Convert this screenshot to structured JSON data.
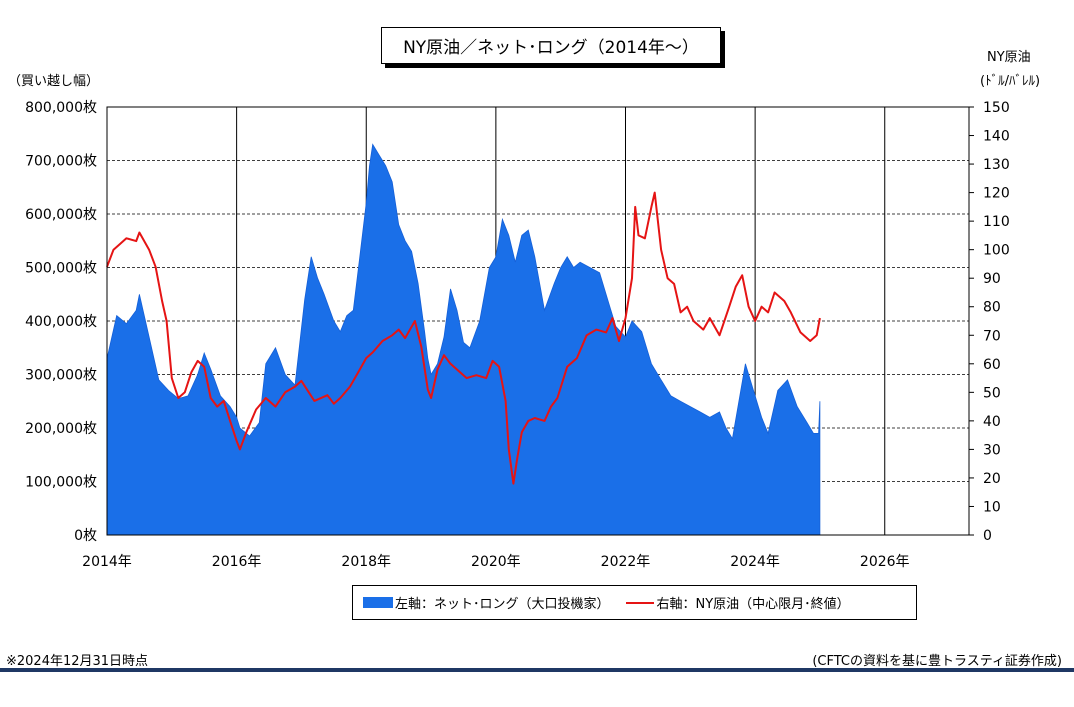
{
  "title": "NY原油／ネット･ロング（2014年～）",
  "left_axis_caption": "（買い越し幅）",
  "right_axis_caption_line1": "NY原油",
  "right_axis_caption_line2": "(ﾄﾞﾙ/ﾊﾞﾚﾙ)",
  "legend": {
    "series1": "左軸：ネット･ロング（大口投機家）",
    "series2": "右軸：NY原油（中心限月･終値）"
  },
  "footnote_left": "※2024年12月31日時点",
  "footnote_right": "(CFTCの資料を基に豊トラスティ証券作成)",
  "colors": {
    "net_long": "#1a6fe8",
    "crude": "#e51414",
    "rule": "#1f3864"
  },
  "chart_data": {
    "type": "area",
    "x_ticks": [
      "2014年",
      "2016年",
      "2018年",
      "2020年",
      "2022年",
      "2024年",
      "2026年"
    ],
    "xlim": [
      2014,
      2027.3
    ],
    "y_left": {
      "ticks": [
        "0枚",
        "100,000枚",
        "200,000枚",
        "300,000枚",
        "400,000枚",
        "500,000枚",
        "600,000枚",
        "700,000枚",
        "800,000枚"
      ],
      "min": 0,
      "max": 800000
    },
    "y_right": {
      "ticks": [
        "0",
        "10",
        "20",
        "30",
        "40",
        "50",
        "60",
        "70",
        "80",
        "90",
        "100",
        "110",
        "120",
        "130",
        "140",
        "150"
      ],
      "min": 0,
      "max": 150
    },
    "grid": "dashed horizontal at each left-axis tick, solid vertical at each x tick",
    "series": [
      {
        "name": "左軸：ネット･ロング（大口投機家）",
        "axis": "left",
        "style": "area",
        "x": [
          2014.0,
          2014.15,
          2014.3,
          2014.45,
          2014.5,
          2014.65,
          2014.8,
          2014.95,
          2015.1,
          2015.25,
          2015.4,
          2015.5,
          2015.6,
          2015.75,
          2015.9,
          2016.0,
          2016.05,
          2016.2,
          2016.35,
          2016.45,
          2016.6,
          2016.75,
          2016.9,
          2017.05,
          2017.15,
          2017.25,
          2017.35,
          2017.5,
          2017.6,
          2017.7,
          2017.8,
          2017.9,
          2018.0,
          2018.05,
          2018.1,
          2018.2,
          2018.3,
          2018.4,
          2018.5,
          2018.6,
          2018.7,
          2018.8,
          2018.9,
          2018.95,
          2019.0,
          2019.1,
          2019.2,
          2019.3,
          2019.4,
          2019.5,
          2019.6,
          2019.75,
          2019.9,
          2020.0,
          2020.1,
          2020.2,
          2020.3,
          2020.4,
          2020.5,
          2020.6,
          2020.75,
          2020.9,
          2021.0,
          2021.1,
          2021.2,
          2021.3,
          2021.45,
          2021.6,
          2021.75,
          2021.85,
          2022.0,
          2022.1,
          2022.25,
          2022.4,
          2022.55,
          2022.7,
          2022.85,
          2023.0,
          2023.15,
          2023.3,
          2023.45,
          2023.55,
          2023.65,
          2023.75,
          2023.85,
          2024.0,
          2024.1,
          2024.2,
          2024.35,
          2024.5,
          2024.65,
          2024.8,
          2024.9,
          2024.98,
          2025.0
        ],
        "values": [
          330000,
          410000,
          395000,
          420000,
          450000,
          370000,
          290000,
          270000,
          255000,
          260000,
          300000,
          340000,
          310000,
          260000,
          240000,
          220000,
          200000,
          185000,
          210000,
          320000,
          350000,
          300000,
          280000,
          440000,
          520000,
          480000,
          450000,
          400000,
          380000,
          410000,
          420000,
          520000,
          620000,
          690000,
          730000,
          710000,
          690000,
          660000,
          580000,
          550000,
          530000,
          470000,
          380000,
          330000,
          300000,
          320000,
          370000,
          460000,
          420000,
          360000,
          350000,
          400000,
          500000,
          520000,
          590000,
          560000,
          510000,
          560000,
          570000,
          520000,
          420000,
          470000,
          500000,
          520000,
          500000,
          510000,
          500000,
          490000,
          430000,
          390000,
          370000,
          400000,
          380000,
          320000,
          290000,
          260000,
          250000,
          240000,
          230000,
          220000,
          230000,
          200000,
          180000,
          250000,
          320000,
          260000,
          220000,
          190000,
          270000,
          290000,
          240000,
          210000,
          190000,
          190000,
          250000
        ]
      },
      {
        "name": "右軸：NY原油（中心限月･終値）",
        "axis": "right",
        "style": "line",
        "x": [
          2014.0,
          2014.1,
          2014.2,
          2014.3,
          2014.45,
          2014.5,
          2014.65,
          2014.75,
          2014.85,
          2014.92,
          2015.0,
          2015.1,
          2015.2,
          2015.3,
          2015.4,
          2015.5,
          2015.6,
          2015.7,
          2015.8,
          2015.9,
          2016.0,
          2016.05,
          2016.15,
          2016.3,
          2016.45,
          2016.6,
          2016.75,
          2016.9,
          2017.0,
          2017.2,
          2017.4,
          2017.5,
          2017.6,
          2017.75,
          2017.9,
          2018.0,
          2018.1,
          2018.25,
          2018.4,
          2018.5,
          2018.6,
          2018.75,
          2018.85,
          2018.95,
          2019.0,
          2019.1,
          2019.2,
          2019.3,
          2019.45,
          2019.55,
          2019.7,
          2019.85,
          2019.95,
          2020.05,
          2020.15,
          2020.2,
          2020.27,
          2020.33,
          2020.4,
          2020.5,
          2020.6,
          2020.75,
          2020.85,
          2020.95,
          2021.1,
          2021.25,
          2021.4,
          2021.55,
          2021.7,
          2021.8,
          2021.9,
          2022.0,
          2022.1,
          2022.15,
          2022.2,
          2022.3,
          2022.4,
          2022.45,
          2022.55,
          2022.65,
          2022.75,
          2022.85,
          2022.95,
          2023.05,
          2023.2,
          2023.3,
          2023.45,
          2023.6,
          2023.7,
          2023.8,
          2023.9,
          2024.0,
          2024.1,
          2024.2,
          2024.3,
          2024.45,
          2024.55,
          2024.7,
          2024.85,
          2024.95,
          2025.0
        ],
        "values": [
          94,
          100,
          102,
          104,
          103,
          106,
          100,
          94,
          82,
          75,
          55,
          48,
          50,
          57,
          61,
          59,
          48,
          45,
          47,
          40,
          33,
          30,
          36,
          44,
          48,
          45,
          50,
          52,
          54,
          47,
          49,
          46,
          48,
          52,
          58,
          62,
          64,
          68,
          70,
          72,
          69,
          75,
          66,
          51,
          48,
          58,
          63,
          60,
          57,
          55,
          56,
          55,
          61,
          59,
          47,
          30,
          18,
          27,
          36,
          40,
          41,
          40,
          45,
          48,
          59,
          62,
          70,
          72,
          71,
          76,
          68,
          76,
          90,
          115,
          105,
          104,
          115,
          120,
          100,
          90,
          88,
          78,
          80,
          75,
          72,
          76,
          70,
          80,
          87,
          91,
          80,
          75,
          80,
          78,
          85,
          82,
          78,
          71,
          68,
          70,
          76
        ]
      }
    ]
  }
}
